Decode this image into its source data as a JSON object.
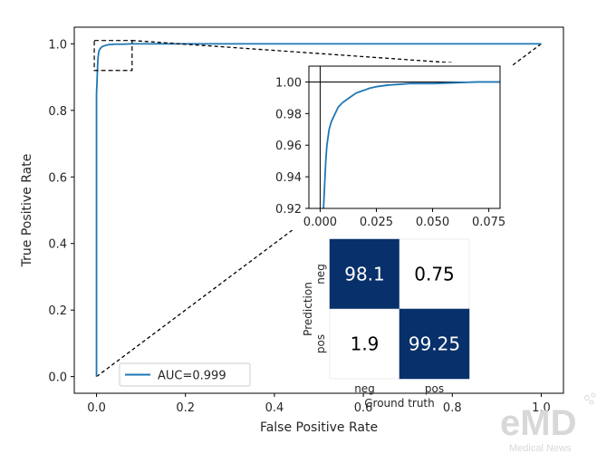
{
  "chart_data": [
    {
      "type": "line",
      "xlabel": "False Positive Rate",
      "ylabel": "True Positive Rate",
      "xlim": [
        -0.05,
        1.05
      ],
      "ylim": [
        -0.05,
        1.05
      ],
      "xticks": [
        "0.0",
        "0.2",
        "0.4",
        "0.6",
        "0.8",
        "1.0"
      ],
      "yticks": [
        "0.0",
        "0.2",
        "0.4",
        "0.6",
        "0.8",
        "1.0"
      ],
      "series": [
        {
          "name": "AUC=0.999",
          "color": "#1f77b4",
          "x": [
            0,
            0,
            0.001,
            0.002,
            0.003,
            0.004,
            0.005,
            0.006,
            0.008,
            0.01,
            0.012,
            0.015,
            0.02,
            0.025,
            0.03,
            0.035,
            0.04,
            0.05,
            0.06,
            0.08,
            0.1,
            0.2,
            0.4,
            0.6,
            0.8,
            1.0
          ],
          "y": [
            0,
            0.85,
            0.88,
            0.92,
            0.95,
            0.965,
            0.975,
            0.98,
            0.985,
            0.988,
            0.991,
            0.993,
            0.995,
            0.997,
            0.998,
            0.998,
            0.999,
            0.999,
            0.999,
            1.0,
            1.0,
            1.0,
            1.0,
            1.0,
            1.0,
            1.0
          ]
        }
      ],
      "reference_line": {
        "x": [
          0,
          1
        ],
        "y": [
          0,
          1
        ],
        "style": "dashed",
        "color": "#000000"
      },
      "zoom_box": {
        "x": [
          -0.005,
          0.08
        ],
        "y": [
          0.92,
          1.01
        ]
      },
      "legend": {
        "placement": "bottom-center",
        "entries": [
          "AUC=0.999"
        ]
      },
      "grid": false
    },
    {
      "type": "line",
      "title": "",
      "xlim": [
        -0.005,
        0.08
      ],
      "ylim": [
        0.92,
        1.01
      ],
      "xticks": [
        "0.000",
        "0.025",
        "0.050",
        "0.075"
      ],
      "yticks": [
        "0.92",
        "0.94",
        "0.96",
        "0.98",
        "1.00"
      ],
      "reference_lines": {
        "x": 0,
        "y": 1.0
      },
      "series": [
        {
          "color": "#1f77b4",
          "x": [
            0.0015,
            0.002,
            0.0025,
            0.003,
            0.0035,
            0.004,
            0.005,
            0.006,
            0.007,
            0.008,
            0.01,
            0.012,
            0.014,
            0.016,
            0.018,
            0.02,
            0.022,
            0.025,
            0.03,
            0.035,
            0.04,
            0.045,
            0.05,
            0.06,
            0.07,
            0.08
          ],
          "y": [
            0.92,
            0.935,
            0.95,
            0.96,
            0.965,
            0.97,
            0.975,
            0.978,
            0.981,
            0.984,
            0.987,
            0.989,
            0.991,
            0.993,
            0.994,
            0.995,
            0.996,
            0.997,
            0.998,
            0.9985,
            0.999,
            0.999,
            0.999,
            0.9995,
            1.0,
            1.0
          ]
        }
      ]
    },
    {
      "type": "heatmap",
      "xlabel": "Ground truth",
      "ylabel": "Prediction",
      "x_categories": [
        "neg",
        "pos"
      ],
      "y_categories": [
        "neg",
        "pos"
      ],
      "values": [
        [
          98.1,
          0.75
        ],
        [
          1.9,
          99.25
        ]
      ],
      "value_labels": [
        [
          "98.1",
          "0.75"
        ],
        [
          "1.9",
          "99.25"
        ]
      ],
      "colors": {
        "high": "#08306b",
        "low": "#ffffff"
      }
    }
  ],
  "watermark": {
    "logo_text": "eMD",
    "subtitle": "Medical News"
  }
}
